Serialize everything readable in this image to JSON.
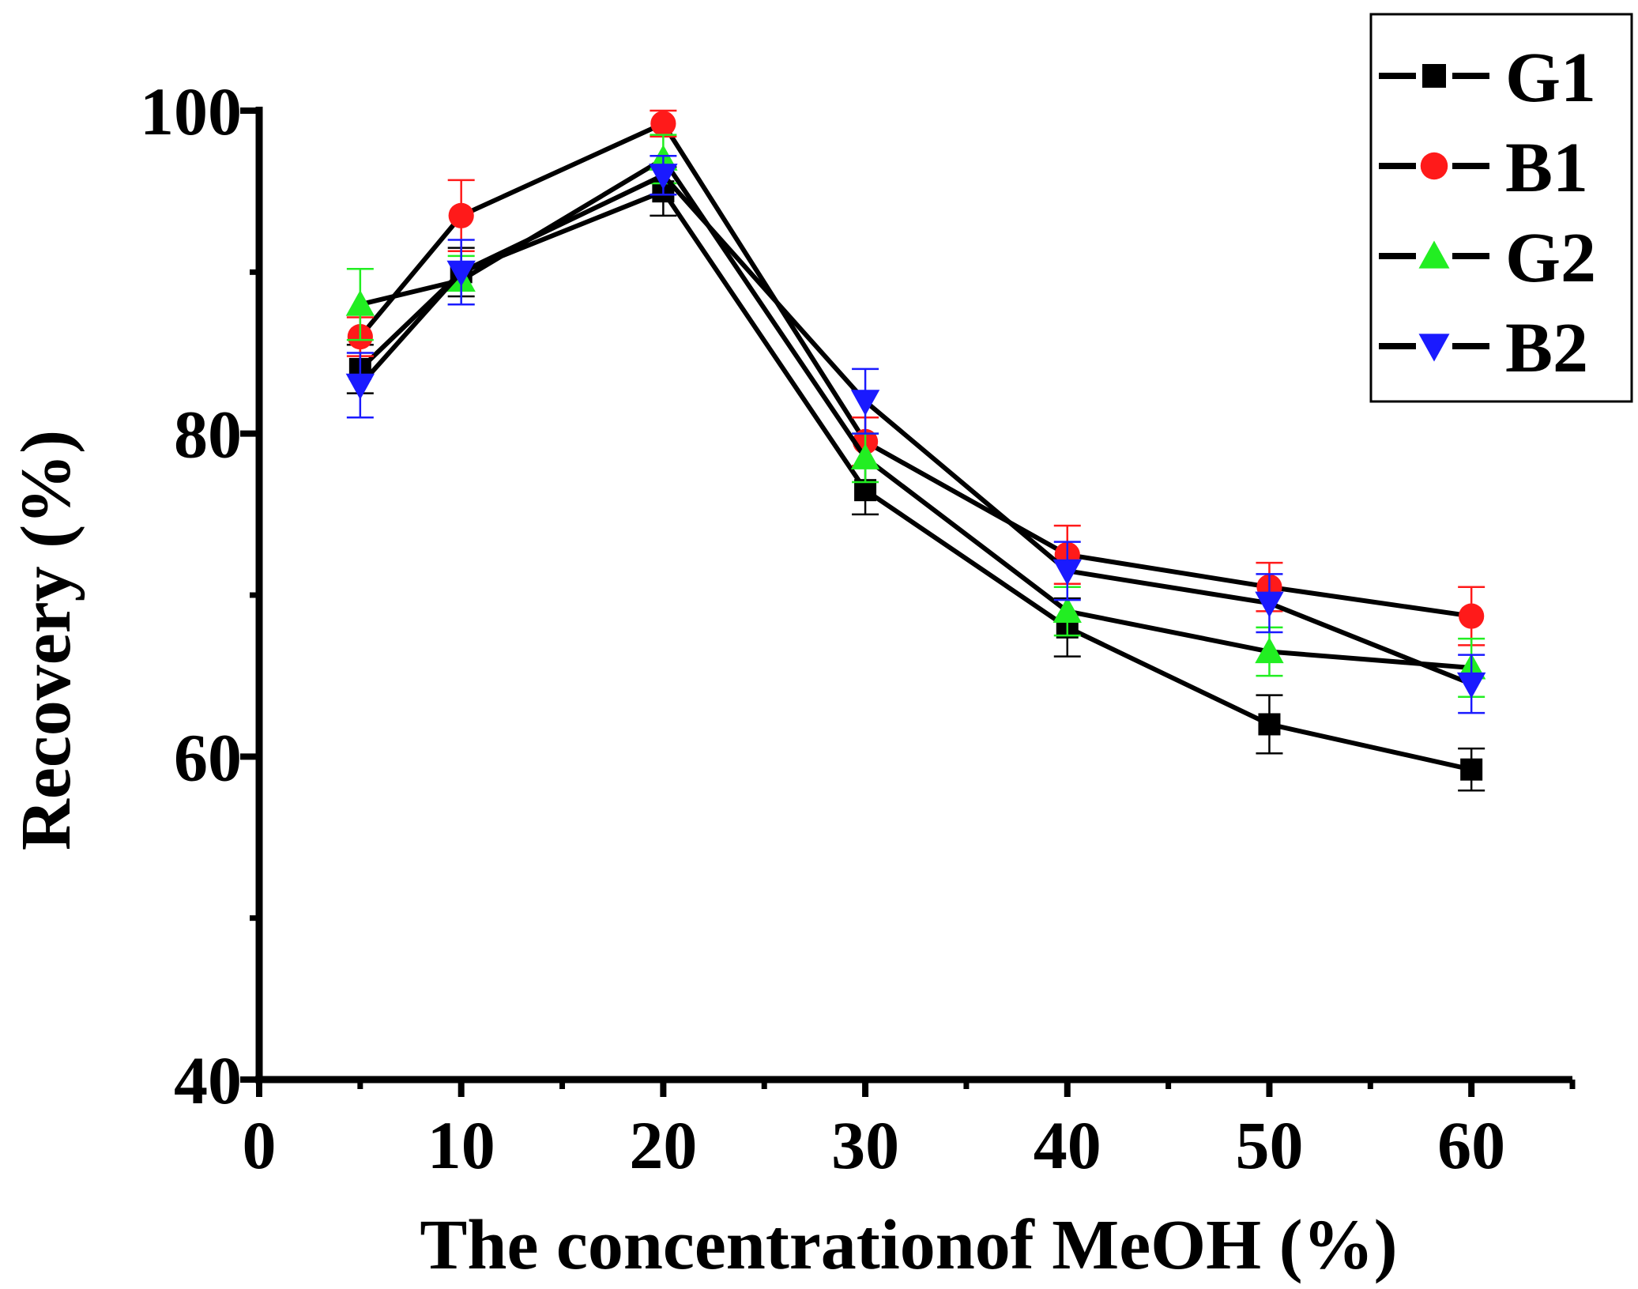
{
  "chart_data": {
    "type": "line",
    "title": "",
    "xlabel": "The concentrationof MeOH (%)",
    "ylabel": "Recovery (%)",
    "xlim": [
      0,
      65
    ],
    "ylim": [
      40,
      100
    ],
    "x_ticks": [
      0,
      10,
      20,
      30,
      40,
      50,
      60
    ],
    "y_ticks": [
      40,
      60,
      80,
      100
    ],
    "x_tick_labels": [
      "0",
      "10",
      "20",
      "30",
      "40",
      "50",
      "60"
    ],
    "y_tick_labels": [
      "40",
      "60",
      "80",
      "100"
    ],
    "legend_position": "top-right",
    "x": [
      5,
      10,
      20,
      30,
      40,
      50,
      60
    ],
    "series": [
      {
        "name": "G1",
        "color": "#000000",
        "marker": "square",
        "values": [
          84.0,
          90.0,
          95.0,
          76.5,
          68.0,
          62.0,
          59.2
        ],
        "errors": [
          1.5,
          1.5,
          1.5,
          1.5,
          1.8,
          1.8,
          1.3
        ]
      },
      {
        "name": "B1",
        "color": "#ff1a1a",
        "marker": "circle",
        "values": [
          86.0,
          93.5,
          99.2,
          79.5,
          72.5,
          70.5,
          68.7
        ],
        "errors": [
          1.2,
          2.2,
          0.8,
          1.5,
          1.8,
          1.5,
          1.8
        ]
      },
      {
        "name": "G2",
        "color": "#22ee22",
        "marker": "triangle-up",
        "values": [
          88.0,
          89.5,
          97.0,
          78.5,
          69.0,
          66.5,
          65.5
        ],
        "errors": [
          2.2,
          1.5,
          1.5,
          1.5,
          1.5,
          1.5,
          1.8
        ]
      },
      {
        "name": "B2",
        "color": "#1a1aff",
        "marker": "triangle-down",
        "values": [
          83.0,
          90.0,
          96.0,
          82.0,
          71.5,
          69.5,
          64.5
        ],
        "errors": [
          2.0,
          2.0,
          1.2,
          2.0,
          1.8,
          1.8,
          1.8
        ]
      }
    ]
  }
}
